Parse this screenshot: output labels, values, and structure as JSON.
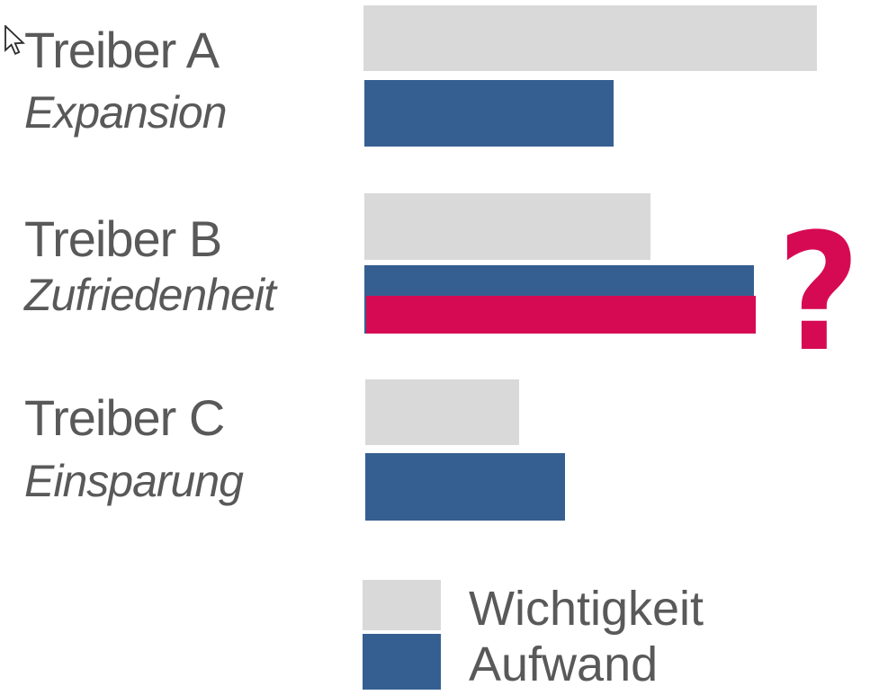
{
  "rows": [
    {
      "title": "Treiber A",
      "subtitle": "Expansion"
    },
    {
      "title": "Treiber B",
      "subtitle": "Zufriedenheit"
    },
    {
      "title": "Treiber C",
      "subtitle": "Einsparung"
    }
  ],
  "legend": {
    "items": [
      {
        "label": "Wichtigkeit",
        "color": "#D9D9D9"
      },
      {
        "label": "Aufwand",
        "color": "#365F91"
      }
    ]
  },
  "annotation": {
    "symbol": "?",
    "color": "#D60A52"
  },
  "colors": {
    "importance_gray": "#D9D9D9",
    "effort_blue": "#365F91",
    "highlight_pink": "#D60A52",
    "label_text": "#595959",
    "background": "#FFFFFF"
  },
  "chart_data": {
    "type": "bar",
    "orientation": "horizontal",
    "title": "",
    "categories": [
      "Treiber A",
      "Treiber B",
      "Treiber C"
    ],
    "category_subtitles": [
      "Expansion",
      "Zufriedenheit",
      "Einsparung"
    ],
    "series": [
      {
        "name": "Wichtigkeit",
        "color": "#D9D9D9",
        "values": [
          100,
          63,
          34
        ]
      },
      {
        "name": "Aufwand",
        "color": "#365F91",
        "values": [
          55,
          86,
          44
        ]
      }
    ],
    "highlight_bar": {
      "category": "Treiber B",
      "value": 86,
      "color": "#D60A52",
      "annotation": "?",
      "note": "pink bar overlaid on lower half of Treiber B Aufwand bar, flagged with large question mark"
    },
    "value_axis": "hidden, relative scale 0-100",
    "grid": false,
    "legend_position": "bottom"
  }
}
